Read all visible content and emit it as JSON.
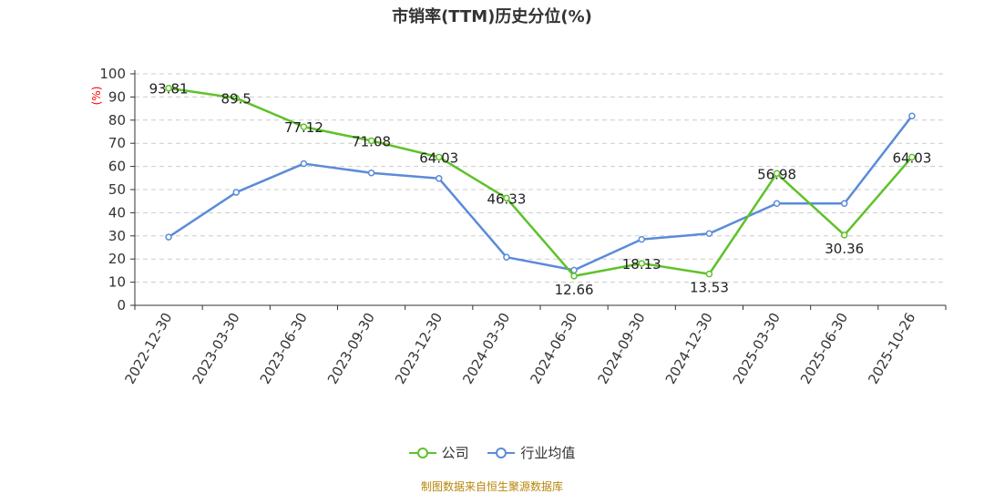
{
  "chart_data": {
    "type": "line",
    "title": "市销率(TTM)历史分位(%)",
    "ylabel": "(%)",
    "ylim": [
      0,
      100
    ],
    "yticks": [
      0,
      10,
      20,
      30,
      40,
      50,
      60,
      70,
      80,
      90,
      100
    ],
    "grid": true,
    "legend_position": "bottom",
    "categories": [
      "2022-12-30",
      "2023-03-30",
      "2023-06-30",
      "2023-09-30",
      "2023-12-30",
      "2024-03-30",
      "2024-06-30",
      "2024-09-30",
      "2024-12-30",
      "2025-03-30",
      "2025-06-30",
      "2025-10-26"
    ],
    "series": [
      {
        "name": "公司",
        "color": "#5ec22a",
        "show_labels": true,
        "values": [
          93.81,
          89.5,
          77.12,
          71.08,
          64.03,
          46.33,
          12.66,
          18.13,
          13.53,
          56.98,
          30.36,
          64.03
        ]
      },
      {
        "name": "行业均值",
        "color": "#5b8bd9",
        "show_labels": false,
        "values": [
          29.5,
          48.8,
          61.2,
          57.2,
          54.8,
          20.8,
          15.2,
          28.5,
          31.0,
          44.0,
          44.0,
          81.8
        ]
      }
    ]
  },
  "source_text": "制图数据来自恒生聚源数据库"
}
